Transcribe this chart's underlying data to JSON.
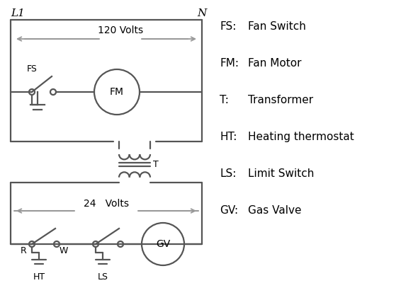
{
  "background_color": "#ffffff",
  "line_color": "#555555",
  "text_color": "#000000",
  "legend_items": [
    [
      "FS:",
      "Fan Switch"
    ],
    [
      "FM:",
      "Fan Motor"
    ],
    [
      "T:",
      "Transformer"
    ],
    [
      "HT:",
      "Heating thermostat"
    ],
    [
      "LS:",
      "Limit Switch"
    ],
    [
      "GV:",
      "Gas Valve"
    ]
  ]
}
